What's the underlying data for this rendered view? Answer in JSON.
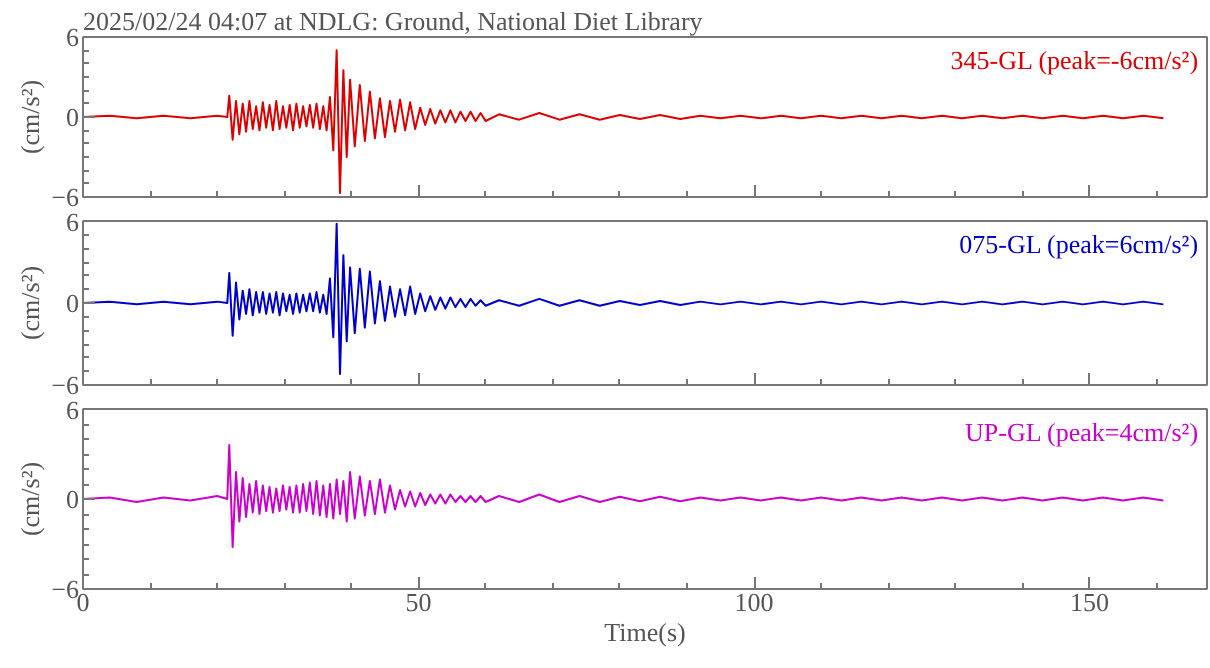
{
  "chart_data": [
    {
      "type": "line",
      "title": "2025/02/24 04:07 at NDLG: Ground, National Diet Library",
      "ylabel": "(cm/s²)",
      "xlim": [
        0,
        167.5
      ],
      "ylim": [
        -6,
        6
      ],
      "xticks": [
        0,
        {
          "value": 10,
          "label": null
        },
        {
          "value": 20,
          "label": null
        },
        {
          "value": 30,
          "label": null
        },
        {
          "value": 40,
          "label": null
        },
        50,
        {
          "value": 60,
          "label": null
        },
        {
          "value": 70,
          "label": null
        },
        {
          "value": 80,
          "label": null
        },
        {
          "value": 90,
          "label": null
        },
        100,
        {
          "value": 110,
          "label": null
        },
        {
          "value": 120,
          "label": null
        },
        {
          "value": 130,
          "label": null
        },
        {
          "value": 140,
          "label": null
        },
        150,
        {
          "value": 160,
          "label": null
        }
      ],
      "yticks": [
        -6,
        {
          "value": -5,
          "label": null
        },
        {
          "value": -4,
          "label": null
        },
        {
          "value": -3,
          "label": null
        },
        {
          "value": -2,
          "label": null
        },
        {
          "value": -1,
          "label": null
        },
        0,
        {
          "value": 1,
          "label": null
        },
        {
          "value": 2,
          "label": null
        },
        {
          "value": 3,
          "label": null
        },
        {
          "value": 4,
          "label": null
        },
        {
          "value": 5,
          "label": null
        },
        6
      ],
      "tick_labels": "y",
      "grid": false,
      "x": [
        0,
        4,
        8,
        12,
        16,
        20,
        21.5,
        21.8,
        22.3,
        22.8,
        23.3,
        23.8,
        24.3,
        24.8,
        25.3,
        25.8,
        26.3,
        26.8,
        27.3,
        27.8,
        28.3,
        28.8,
        29.3,
        29.8,
        30.3,
        30.8,
        31.3,
        31.8,
        32.3,
        32.8,
        33.3,
        33.8,
        34.3,
        34.8,
        35.3,
        35.8,
        36.3,
        36.8,
        37.3,
        37.8,
        38.3,
        38.8,
        39.3,
        39.8,
        40.5,
        41.25,
        42,
        42.75,
        43.5,
        44.25,
        45,
        45.75,
        46.5,
        47.25,
        48,
        48.75,
        49.5,
        50.25,
        51,
        51.75,
        52.5,
        53.25,
        54,
        54.75,
        55.5,
        56.25,
        57,
        57.75,
        58.5,
        59.25,
        60,
        62,
        65,
        68,
        71,
        74,
        77,
        80,
        83,
        86,
        89,
        92,
        95,
        98,
        101,
        104,
        107,
        110,
        113,
        116,
        119,
        122,
        125,
        128,
        131,
        134,
        137,
        140,
        143,
        146,
        149,
        152,
        155,
        158,
        161
      ],
      "series": [
        {
          "name": "345-GL (peak=-6cm/s²)",
          "color": "#dd0000",
          "values": [
            0,
            0.1,
            -0.1,
            0.1,
            -0.1,
            0.1,
            0,
            1.6,
            -1.7,
            1.2,
            -1.3,
            1.0,
            -1.1,
            1.2,
            -0.9,
            0.8,
            -1.0,
            1.1,
            -0.8,
            0.9,
            -1.0,
            1.2,
            -0.9,
            0.8,
            -0.8,
            0.9,
            -1.0,
            1.0,
            -0.8,
            0.8,
            -0.7,
            0.9,
            -0.8,
            1.0,
            -0.9,
            0.8,
            -1.0,
            1.5,
            -2.5,
            5.0,
            -5.7,
            3.5,
            -3.0,
            2.8,
            -2.2,
            2.4,
            -1.8,
            1.9,
            -1.6,
            1.4,
            -1.5,
            1.2,
            -1.1,
            1.3,
            -1.0,
            1.1,
            -0.9,
            0.7,
            -0.6,
            0.6,
            -0.5,
            0.5,
            -0.4,
            0.5,
            -0.4,
            0.4,
            -0.3,
            0.4,
            -0.3,
            0.3,
            -0.3,
            0.2,
            -0.2,
            0.3,
            -0.2,
            0.2,
            -0.2,
            0.15,
            -0.15,
            0.15,
            -0.15,
            0.1,
            -0.1,
            0.1,
            -0.1,
            0.1,
            -0.1,
            0.1,
            -0.1,
            0.1,
            -0.1,
            0.1,
            -0.1,
            0.1,
            -0.1,
            0.1,
            -0.1,
            0.1,
            -0.1,
            0.1,
            -0.1,
            0.1,
            -0.1,
            0.1,
            -0.1
          ]
        }
      ]
    },
    {
      "type": "line",
      "ylabel": "(cm/s²)",
      "xlim": [
        0,
        167.5
      ],
      "ylim": [
        -6,
        6
      ],
      "xticks": [
        0,
        {
          "value": 10,
          "label": null
        },
        {
          "value": 20,
          "label": null
        },
        {
          "value": 30,
          "label": null
        },
        {
          "value": 40,
          "label": null
        },
        50,
        {
          "value": 60,
          "label": null
        },
        {
          "value": 70,
          "label": null
        },
        {
          "value": 80,
          "label": null
        },
        {
          "value": 90,
          "label": null
        },
        100,
        {
          "value": 110,
          "label": null
        },
        {
          "value": 120,
          "label": null
        },
        {
          "value": 130,
          "label": null
        },
        {
          "value": 140,
          "label": null
        },
        150,
        {
          "value": 160,
          "label": null
        }
      ],
      "yticks": [
        -6,
        {
          "value": -5,
          "label": null
        },
        {
          "value": -4,
          "label": null
        },
        {
          "value": -3,
          "label": null
        },
        {
          "value": -2,
          "label": null
        },
        {
          "value": -1,
          "label": null
        },
        0,
        {
          "value": 1,
          "label": null
        },
        {
          "value": 2,
          "label": null
        },
        {
          "value": 3,
          "label": null
        },
        {
          "value": 4,
          "label": null
        },
        {
          "value": 5,
          "label": null
        },
        6
      ],
      "tick_labels": "y",
      "grid": false,
      "x": [
        0,
        4,
        8,
        12,
        16,
        20,
        21.5,
        21.8,
        22.3,
        22.8,
        23.3,
        23.8,
        24.3,
        24.8,
        25.3,
        25.8,
        26.3,
        26.8,
        27.3,
        27.8,
        28.3,
        28.8,
        29.3,
        29.8,
        30.3,
        30.8,
        31.3,
        31.8,
        32.3,
        32.8,
        33.3,
        33.8,
        34.3,
        34.8,
        35.3,
        35.8,
        36.3,
        36.8,
        37.3,
        37.8,
        38.3,
        38.8,
        39.3,
        39.8,
        40.5,
        41.25,
        42,
        42.75,
        43.5,
        44.25,
        45,
        45.75,
        46.5,
        47.25,
        48,
        48.75,
        49.5,
        50.25,
        51,
        51.75,
        52.5,
        53.25,
        54,
        54.75,
        55.5,
        56.25,
        57,
        57.75,
        58.5,
        59.25,
        60,
        62,
        65,
        68,
        71,
        74,
        77,
        80,
        83,
        86,
        89,
        92,
        95,
        98,
        101,
        104,
        107,
        110,
        113,
        116,
        119,
        122,
        125,
        128,
        131,
        134,
        137,
        140,
        143,
        146,
        149,
        152,
        155,
        158,
        161
      ],
      "series": [
        {
          "name": "075-GL (peak=6cm/s²)",
          "color": "#0000cc",
          "values": [
            0,
            0.1,
            -0.1,
            0.1,
            -0.1,
            0.1,
            0,
            2.2,
            -2.4,
            1.5,
            -1.2,
            0.9,
            -0.8,
            1.0,
            -0.9,
            0.8,
            -0.7,
            0.8,
            -0.8,
            0.7,
            -0.7,
            0.8,
            -0.9,
            0.7,
            -0.6,
            0.6,
            -0.8,
            0.7,
            -0.7,
            0.6,
            -0.6,
            0.7,
            -0.6,
            0.8,
            -0.7,
            0.6,
            -0.8,
            1.8,
            -2.5,
            5.8,
            -5.2,
            3.5,
            -2.8,
            2.6,
            -2.2,
            2.5,
            -1.8,
            2.3,
            -1.5,
            1.6,
            -1.3,
            1.2,
            -1.0,
            1.0,
            -0.9,
            1.2,
            -0.8,
            0.7,
            -0.6,
            0.5,
            -0.5,
            0.4,
            -0.4,
            0.4,
            -0.3,
            0.3,
            -0.3,
            0.3,
            -0.2,
            0.2,
            -0.2,
            0.2,
            -0.2,
            0.3,
            -0.2,
            0.2,
            -0.2,
            0.15,
            -0.15,
            0.15,
            -0.15,
            0.1,
            -0.1,
            0.1,
            -0.1,
            0.1,
            -0.1,
            0.1,
            -0.1,
            0.1,
            -0.1,
            0.1,
            -0.1,
            0.1,
            -0.1,
            0.1,
            -0.1,
            0.1,
            -0.1,
            0.1,
            -0.1,
            0.1,
            -0.1,
            0.1,
            -0.1
          ]
        }
      ]
    },
    {
      "type": "line",
      "ylabel": "(cm/s²)",
      "xlabel": "Time(s)",
      "xlim": [
        0,
        167.5
      ],
      "ylim": [
        -6,
        6
      ],
      "xticks": [
        0,
        {
          "value": 10,
          "label": null
        },
        {
          "value": 20,
          "label": null
        },
        {
          "value": 30,
          "label": null
        },
        {
          "value": 40,
          "label": null
        },
        50,
        {
          "value": 60,
          "label": null
        },
        {
          "value": 70,
          "label": null
        },
        {
          "value": 80,
          "label": null
        },
        {
          "value": 90,
          "label": null
        },
        100,
        {
          "value": 110,
          "label": null
        },
        {
          "value": 120,
          "label": null
        },
        {
          "value": 130,
          "label": null
        },
        {
          "value": 140,
          "label": null
        },
        150,
        {
          "value": 160,
          "label": null
        }
      ],
      "yticks": [
        -6,
        {
          "value": -5,
          "label": null
        },
        {
          "value": -4,
          "label": null
        },
        {
          "value": -3,
          "label": null
        },
        {
          "value": -2,
          "label": null
        },
        {
          "value": -1,
          "label": null
        },
        0,
        {
          "value": 1,
          "label": null
        },
        {
          "value": 2,
          "label": null
        },
        {
          "value": 3,
          "label": null
        },
        {
          "value": 4,
          "label": null
        },
        {
          "value": 5,
          "label": null
        },
        6
      ],
      "grid": false,
      "x": [
        0,
        4,
        8,
        12,
        16,
        20,
        21.5,
        21.8,
        22.3,
        22.8,
        23.3,
        23.8,
        24.3,
        24.8,
        25.3,
        25.8,
        26.3,
        26.8,
        27.3,
        27.8,
        28.3,
        28.8,
        29.3,
        29.8,
        30.3,
        30.8,
        31.3,
        31.8,
        32.3,
        32.8,
        33.3,
        33.8,
        34.3,
        34.8,
        35.3,
        35.8,
        36.3,
        36.8,
        37.3,
        37.8,
        38.3,
        38.8,
        39.3,
        39.8,
        40.5,
        41.25,
        42,
        42.75,
        43.5,
        44.25,
        45,
        45.75,
        46.5,
        47.25,
        48,
        48.75,
        49.5,
        50.25,
        51,
        51.75,
        52.5,
        53.25,
        54,
        54.75,
        55.5,
        56.25,
        57,
        57.75,
        58.5,
        59.25,
        60,
        62,
        65,
        68,
        71,
        74,
        77,
        80,
        83,
        86,
        89,
        92,
        95,
        98,
        101,
        104,
        107,
        110,
        113,
        116,
        119,
        122,
        125,
        128,
        131,
        134,
        137,
        140,
        143,
        146,
        149,
        152,
        155,
        158,
        161
      ],
      "series": [
        {
          "name": "UP-GL (peak=4cm/s²)",
          "color": "#cc00cc",
          "values": [
            0,
            0.1,
            -0.2,
            0.1,
            -0.1,
            0.2,
            0,
            3.6,
            -3.2,
            1.8,
            -1.5,
            1.4,
            -1.2,
            1.0,
            -0.9,
            1.2,
            -1.0,
            0.9,
            -0.8,
            0.8,
            -0.9,
            0.7,
            -0.8,
            0.9,
            -0.7,
            0.8,
            -0.9,
            0.9,
            -0.9,
            1.0,
            -0.8,
            1.1,
            -1.0,
            1.2,
            -1.1,
            0.9,
            -1.2,
            1.0,
            -1.3,
            1.3,
            -1.0,
            1.2,
            -1.5,
            1.8,
            -1.3,
            1.5,
            -1.1,
            1.2,
            -1.0,
            1.3,
            -0.9,
            0.9,
            -0.7,
            0.6,
            -0.5,
            0.5,
            -0.5,
            0.4,
            -0.4,
            0.3,
            -0.3,
            0.3,
            -0.3,
            0.3,
            -0.2,
            0.2,
            -0.2,
            0.2,
            -0.2,
            0.2,
            -0.2,
            0.2,
            -0.2,
            0.3,
            -0.2,
            0.2,
            -0.2,
            0.15,
            -0.15,
            0.15,
            -0.15,
            0.1,
            -0.1,
            0.1,
            -0.1,
            0.1,
            -0.1,
            0.1,
            -0.1,
            0.1,
            -0.1,
            0.1,
            -0.1,
            0.1,
            -0.1,
            0.1,
            -0.1,
            0.1,
            -0.1,
            0.1,
            -0.1,
            0.1,
            -0.1,
            0.1,
            -0.1
          ]
        }
      ]
    }
  ]
}
